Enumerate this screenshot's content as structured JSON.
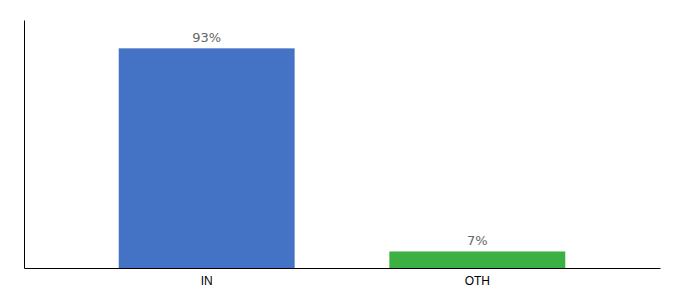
{
  "chart_data": {
    "type": "bar",
    "categories": [
      "IN",
      "OTH"
    ],
    "values": [
      93,
      7
    ],
    "value_labels": [
      "93%",
      "7%"
    ],
    "colors": [
      "#4472c4",
      "#3cb043"
    ],
    "ylim": [
      0,
      105
    ],
    "data_labels": true,
    "tick_labels": "x"
  }
}
